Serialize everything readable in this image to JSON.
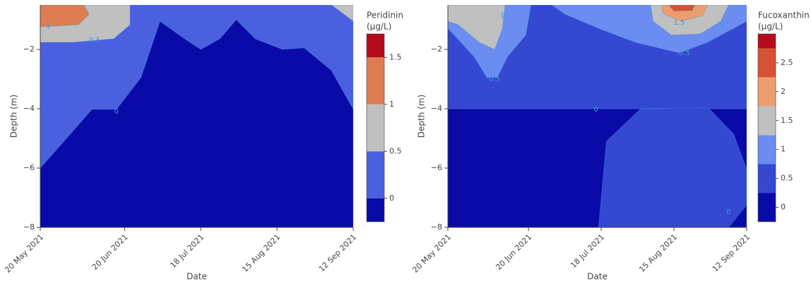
{
  "chart_data": [
    {
      "type": "contour",
      "x_label": "Date",
      "y_label": "Depth (m)",
      "colorbar_title": [
        "Peridinin",
        "(μg/L)"
      ],
      "xlim": [
        "2021-05-20",
        "2021-09-12"
      ],
      "xticks": [
        {
          "value": "2021-05-20",
          "label": "20 May 2021"
        },
        {
          "value": "2021-06-20",
          "label": "20 Jun 2021"
        },
        {
          "value": "2021-07-18",
          "label": "18 Jul 2021"
        },
        {
          "value": "2021-08-15",
          "label": "15 Aug 2021"
        },
        {
          "value": "2021-09-12",
          "label": "12 Sep 2021"
        }
      ],
      "ylim": [
        -8,
        -0.5
      ],
      "yticks": [
        {
          "value": -8,
          "label": "−8"
        },
        {
          "value": -6,
          "label": "−6"
        },
        {
          "value": -4,
          "label": "−4"
        },
        {
          "value": -2,
          "label": "−2"
        }
      ],
      "colorscale": {
        "levels": [
          -0.25,
          0,
          0.5,
          1,
          1.5,
          1.75
        ],
        "colors": [
          "#0a0aa8",
          "#4a60e0",
          "#c0c0c0",
          "#de7d52",
          "#b40b1e"
        ]
      },
      "cbticks": [
        0,
        0.5,
        1,
        1.5
      ],
      "regions": [
        {
          "band": 1,
          "points": [
            [
              "2021-05-20",
              -0.5
            ],
            [
              "2021-09-12",
              -0.5
            ],
            [
              "2021-09-12",
              -8
            ],
            [
              "2021-05-20",
              -8
            ]
          ]
        },
        {
          "band": 0,
          "points": [
            [
              "2021-05-20",
              -6
            ],
            [
              "2021-05-31",
              -4.86
            ],
            [
              "2021-06-08",
              -4.02
            ],
            [
              "2021-06-17",
              -4.02
            ],
            [
              "2021-06-26",
              -2.95
            ],
            [
              "2021-07-03",
              -1.05
            ],
            [
              "2021-07-12",
              -1.64
            ],
            [
              "2021-07-18",
              -2
            ],
            [
              "2021-07-25",
              -1.64
            ],
            [
              "2021-07-31",
              -1
            ],
            [
              "2021-08-07",
              -1.64
            ],
            [
              "2021-08-17",
              -2
            ],
            [
              "2021-08-25",
              -1.95
            ],
            [
              "2021-09-04",
              -2.71
            ],
            [
              "2021-09-12",
              -4.02
            ],
            [
              "2021-09-12",
              -8
            ],
            [
              "2021-05-20",
              -8
            ]
          ]
        },
        {
          "band": 2,
          "points": [
            [
              "2021-05-20",
              -0.5
            ],
            [
              "2021-06-22",
              -0.5
            ],
            [
              "2021-06-22",
              -1.17
            ],
            [
              "2021-06-16",
              -1.64
            ],
            [
              "2021-06-01",
              -1.76
            ],
            [
              "2021-05-20",
              -1.76
            ]
          ]
        },
        {
          "band": 2,
          "points": [
            [
              "2021-09-04",
              -0.5
            ],
            [
              "2021-09-12",
              -0.5
            ],
            [
              "2021-09-12",
              -1.05
            ]
          ]
        },
        {
          "band": 3,
          "points": [
            [
              "2021-05-20",
              -0.5
            ],
            [
              "2021-06-05",
              -0.5
            ],
            [
              "2021-06-07",
              -0.81
            ],
            [
              "2021-06-03",
              -1.17
            ],
            [
              "2021-05-20",
              -1.24
            ]
          ]
        }
      ],
      "contour_labels": [
        {
          "value": 1,
          "x": "2021-05-23",
          "y": -1.21
        },
        {
          "value": 0.5,
          "x": "2021-06-09",
          "y": -1.69
        },
        {
          "value": 0,
          "x": "2021-06-17",
          "y": -4.1
        }
      ]
    },
    {
      "type": "contour",
      "x_label": "Date",
      "y_label": "Depth (m)",
      "colorbar_title": [
        "Fucoxanthin",
        "(μg/L)"
      ],
      "xlim": [
        "2021-05-20",
        "2021-09-12"
      ],
      "xticks": [
        {
          "value": "2021-05-20",
          "label": "20 May 2021"
        },
        {
          "value": "2021-06-20",
          "label": "20 Jun 2021"
        },
        {
          "value": "2021-07-18",
          "label": "18 Jul 2021"
        },
        {
          "value": "2021-08-15",
          "label": "15 Aug 2021"
        },
        {
          "value": "2021-09-12",
          "label": "12 Sep 2021"
        }
      ],
      "ylim": [
        -8,
        -0.5
      ],
      "yticks": [
        {
          "value": -8,
          "label": "−8"
        },
        {
          "value": -6,
          "label": "−6"
        },
        {
          "value": -4,
          "label": "−4"
        },
        {
          "value": -2,
          "label": "−2"
        }
      ],
      "colorscale": {
        "levels": [
          -0.25,
          0.25,
          0.75,
          1.25,
          1.75,
          2.25,
          2.75,
          3
        ],
        "colors": [
          "#0a0aa8",
          "#3448d2",
          "#6b8cf0",
          "#c0c0c0",
          "#eb9d6e",
          "#d65235",
          "#b40b1e"
        ]
      },
      "cbticks": [
        0,
        0.5,
        1,
        1.5,
        2,
        2.5
      ],
      "regions": [
        {
          "band": 1,
          "points": [
            [
              "2021-05-20",
              -0.5
            ],
            [
              "2021-09-12",
              -0.5
            ],
            [
              "2021-09-12",
              -4
            ],
            [
              "2021-05-20",
              -4
            ]
          ]
        },
        {
          "band": 0,
          "points": [
            [
              "2021-05-20",
              -4
            ],
            [
              "2021-09-12",
              -4
            ],
            [
              "2021-09-12",
              -8
            ],
            [
              "2021-05-20",
              -8
            ]
          ]
        },
        {
          "band": 1,
          "points": [
            [
              "2021-07-17",
              -8
            ],
            [
              "2021-07-20",
              -5.1
            ],
            [
              "2021-08-02",
              -4.02
            ],
            [
              "2021-08-28",
              -3.95
            ],
            [
              "2021-09-07",
              -4.86
            ],
            [
              "2021-09-12",
              -6.05
            ],
            [
              "2021-09-12",
              -7.24
            ],
            [
              "2021-09-05",
              -8
            ]
          ]
        },
        {
          "band": 2,
          "points": [
            [
              "2021-06-29",
              -0.5
            ],
            [
              "2021-09-12",
              -0.5
            ],
            [
              "2021-09-12",
              -1.05
            ],
            [
              "2021-08-28",
              -1.76
            ],
            [
              "2021-08-17",
              -2.12
            ],
            [
              "2021-07-31",
              -1.76
            ],
            [
              "2021-07-17",
              -1.29
            ],
            [
              "2021-07-04",
              -0.81
            ]
          ]
        },
        {
          "band": 2,
          "points": [
            [
              "2021-05-20",
              -0.5
            ],
            [
              "2021-06-21",
              -0.5
            ],
            [
              "2021-06-19",
              -1.52
            ],
            [
              "2021-06-12",
              -2.24
            ],
            [
              "2021-06-08",
              -2.95
            ],
            [
              "2021-06-04",
              -2.95
            ],
            [
              "2021-05-30",
              -2.24
            ],
            [
              "2021-05-20",
              -1.29
            ]
          ]
        },
        {
          "band": 3,
          "points": [
            [
              "2021-05-20",
              -0.5
            ],
            [
              "2021-06-11",
              -0.5
            ],
            [
              "2021-06-10",
              -1.29
            ],
            [
              "2021-06-07",
              -2
            ],
            [
              "2021-06-01",
              -1.76
            ],
            [
              "2021-05-24",
              -1.17
            ],
            [
              "2021-05-20",
              -1.05
            ]
          ]
        },
        {
          "band": 3,
          "points": [
            [
              "2021-08-06",
              -0.5
            ],
            [
              "2021-09-05",
              -0.5
            ],
            [
              "2021-09-02",
              -1.05
            ],
            [
              "2021-08-25",
              -1.48
            ],
            [
              "2021-08-14",
              -1.52
            ],
            [
              "2021-08-07",
              -1.05
            ]
          ]
        },
        {
          "band": 4,
          "points": [
            [
              "2021-08-10",
              -0.5
            ],
            [
              "2021-08-28",
              -0.5
            ],
            [
              "2021-08-26",
              -0.86
            ],
            [
              "2021-08-18",
              -1.05
            ],
            [
              "2021-08-11",
              -0.81
            ]
          ]
        },
        {
          "band": 5,
          "points": [
            [
              "2021-08-13",
              -0.5
            ],
            [
              "2021-08-23",
              -0.5
            ],
            [
              "2021-08-22",
              -0.69
            ],
            [
              "2021-08-15",
              -0.71
            ]
          ]
        }
      ],
      "contour_labels": [
        {
          "value": 1,
          "x": "2021-06-10",
          "y": -0.86
        },
        {
          "value": 0.5,
          "x": "2021-06-07",
          "y": -3.0
        },
        {
          "value": 1.5,
          "x": "2021-08-17",
          "y": -1.1
        },
        {
          "value": 1,
          "x": "2021-09-03",
          "y": -1.24
        },
        {
          "value": 0.5,
          "x": "2021-08-19",
          "y": -2.12
        },
        {
          "value": 0,
          "x": "2021-07-16",
          "y": -4.02
        },
        {
          "value": 0,
          "x": "2021-09-05",
          "y": -7.48
        }
      ]
    }
  ]
}
